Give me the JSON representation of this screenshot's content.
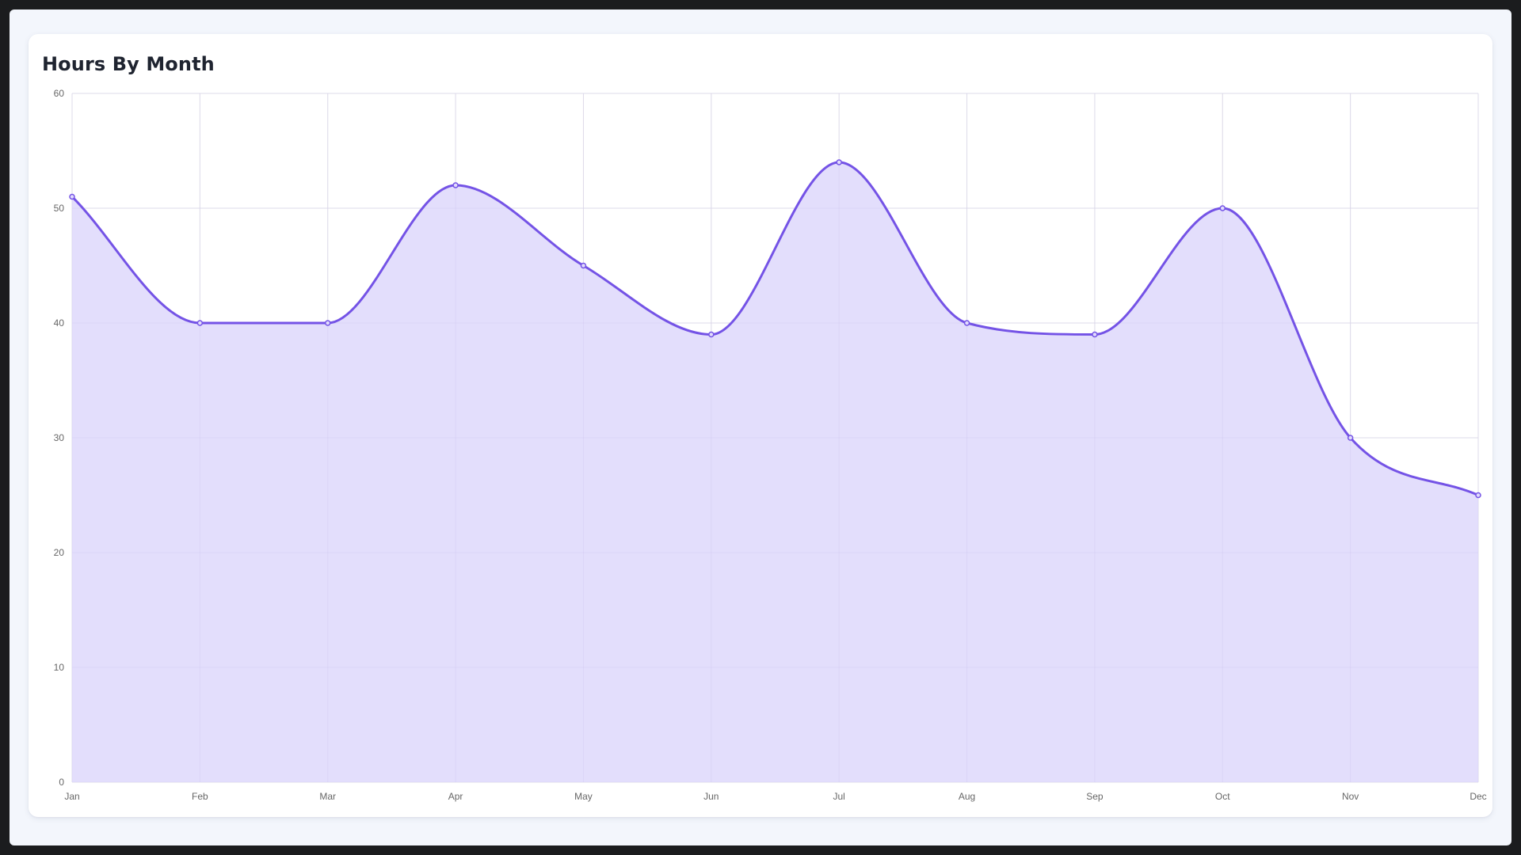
{
  "card": {
    "title": "Hours By Month"
  },
  "chart_data": {
    "type": "area",
    "title": "Hours By Month",
    "categories": [
      "Jan",
      "Feb",
      "Mar",
      "Apr",
      "May",
      "Jun",
      "Jul",
      "Aug",
      "Sep",
      "Oct",
      "Nov",
      "Dec"
    ],
    "series": [
      {
        "values": [
          51,
          40,
          40,
          52,
          45,
          39,
          54,
          40,
          39,
          50,
          30,
          25
        ],
        "line_color": "#7453e6",
        "fill_color": "#e2dcfc"
      }
    ],
    "ylim": [
      0,
      60
    ],
    "y_ticks": [
      0,
      10,
      20,
      30,
      40,
      50,
      60
    ],
    "xlabel": "",
    "ylabel": "",
    "grid": true,
    "smooth": true,
    "legend": "none"
  },
  "colors": {
    "grid": "#e6e6e6",
    "tick_text": "#666666",
    "page_background": "#f3f6fc",
    "card_background": "#ffffff"
  }
}
